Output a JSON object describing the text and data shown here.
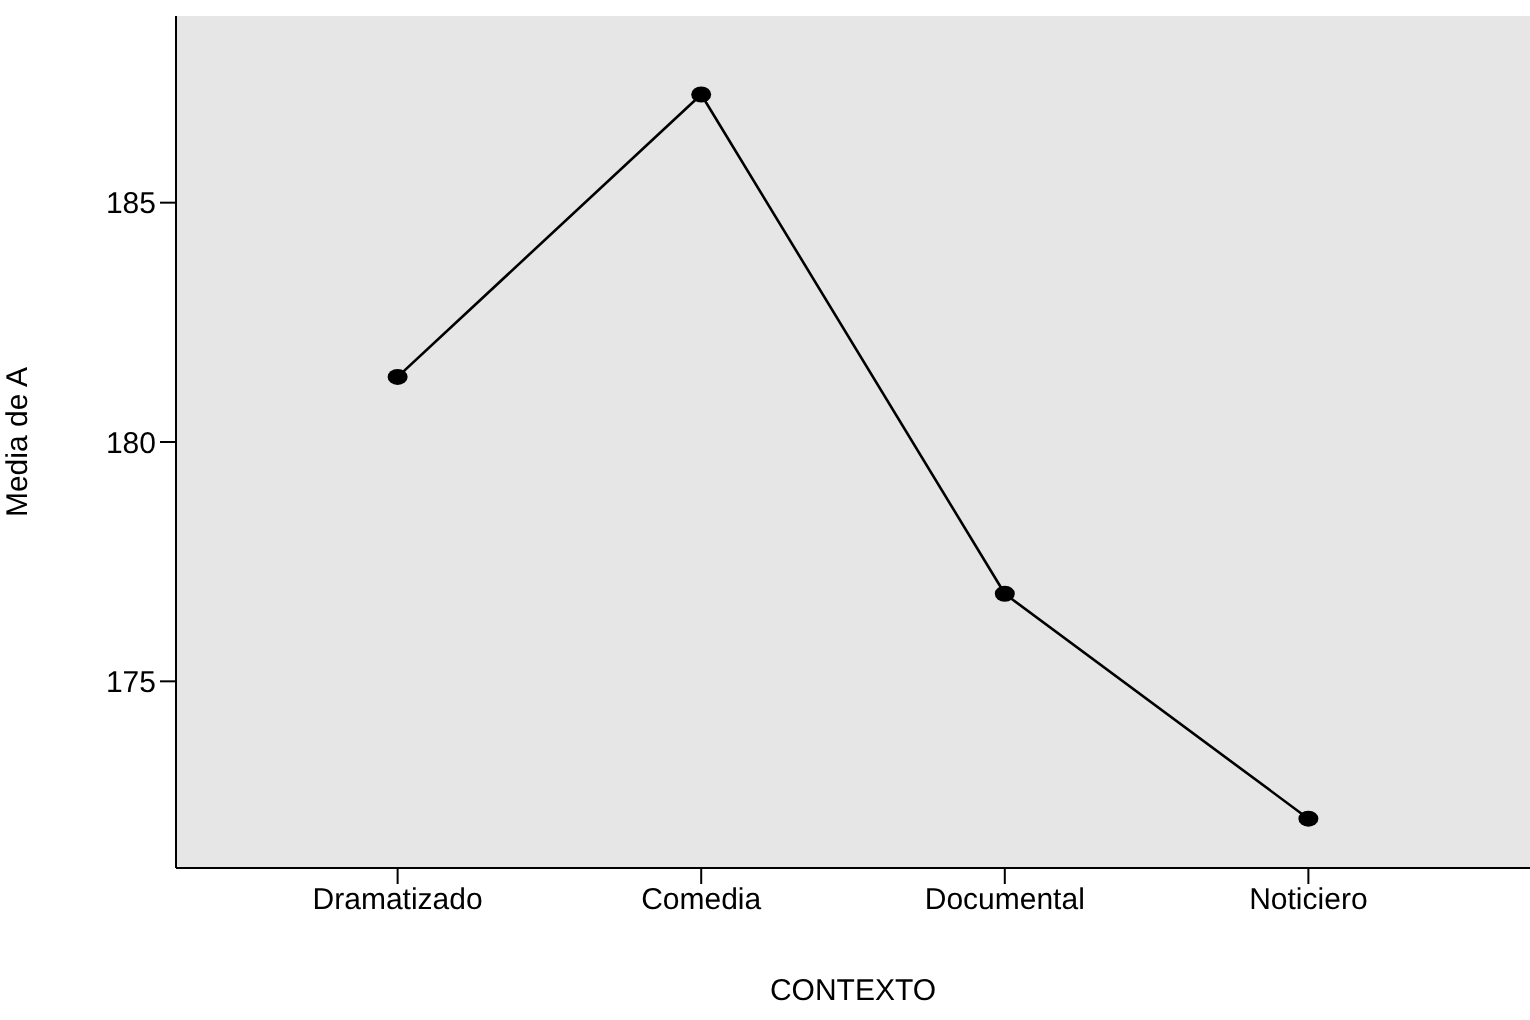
{
  "chart_data": {
    "type": "line",
    "xlabel": "CONTEXTO",
    "ylabel": "Media de A",
    "categories": [
      "Dramatizado",
      "Comedia",
      "Documental",
      "Noticiero"
    ],
    "series": [
      {
        "color": "#000000",
        "values": [
          181.36,
          187.26,
          176.83,
          172.13
        ]
      }
    ],
    "ylim": [
      171.1,
      188.9
    ],
    "yticks": [
      175,
      180,
      185
    ],
    "grid": false,
    "legend": false,
    "marker": "circle",
    "line_style": "solid"
  }
}
